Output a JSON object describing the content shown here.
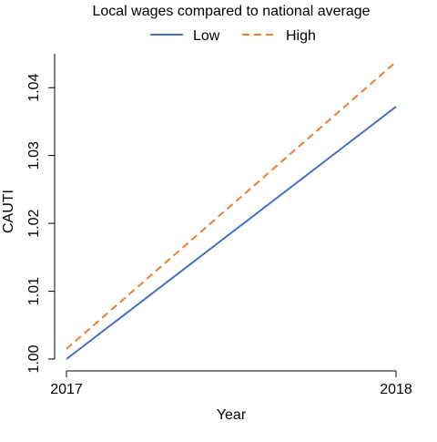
{
  "chart_data": {
    "type": "line",
    "title": "Local wages compared to national average",
    "xlabel": "Year",
    "ylabel": "CAUTI",
    "x": [
      2017,
      2018
    ],
    "x_ticks": [
      "2017",
      "2018"
    ],
    "y_ticks": [
      "1.00",
      "1.01",
      "1.02",
      "1.03",
      "1.04"
    ],
    "xlim": [
      2017,
      2018
    ],
    "ylim": [
      1.0,
      1.045
    ],
    "grid": false,
    "legend_position": "top",
    "series": [
      {
        "name": "Low",
        "values": [
          1.0,
          1.0372
        ],
        "color": "#4472c4",
        "dash": "solid"
      },
      {
        "name": "High",
        "values": [
          1.0015,
          1.0438
        ],
        "color": "#ed7d31",
        "dash": "dashed"
      }
    ]
  }
}
